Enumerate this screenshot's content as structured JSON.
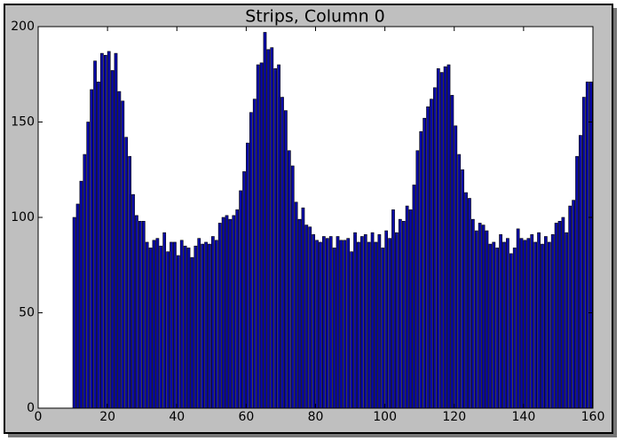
{
  "chart_data": {
    "type": "bar",
    "title": "Strips, Column 0",
    "x": [
      10,
      11,
      12,
      13,
      14,
      15,
      16,
      17,
      18,
      19,
      20,
      21,
      22,
      23,
      24,
      25,
      26,
      27,
      28,
      29,
      30,
      31,
      32,
      33,
      34,
      35,
      36,
      37,
      38,
      39,
      40,
      41,
      42,
      43,
      44,
      45,
      46,
      47,
      48,
      49,
      50,
      51,
      52,
      53,
      54,
      55,
      56,
      57,
      58,
      59,
      60,
      61,
      62,
      63,
      64,
      65,
      66,
      67,
      68,
      69,
      70,
      71,
      72,
      73,
      74,
      75,
      76,
      77,
      78,
      79,
      80,
      81,
      82,
      83,
      84,
      85,
      86,
      87,
      88,
      89,
      90,
      91,
      92,
      93,
      94,
      95,
      96,
      97,
      98,
      99,
      100,
      101,
      102,
      103,
      104,
      105,
      106,
      107,
      108,
      109,
      110,
      111,
      112,
      113,
      114,
      115,
      116,
      117,
      118,
      119,
      120,
      121,
      122,
      123,
      124,
      125,
      126,
      127,
      128,
      129,
      130,
      131,
      132,
      133,
      134,
      135,
      136,
      137,
      138,
      139,
      140,
      141,
      142,
      143,
      144,
      145,
      146,
      147,
      148,
      149,
      150,
      151,
      152,
      153,
      154,
      155,
      156,
      157,
      158,
      159
    ],
    "values": [
      100,
      107,
      119,
      133,
      150,
      167,
      182,
      171,
      186,
      185,
      187,
      177,
      186,
      166,
      161,
      142,
      132,
      112,
      101,
      98,
      98,
      87,
      84,
      88,
      89,
      85,
      92,
      82,
      87,
      87,
      80,
      88,
      85,
      84,
      79,
      85,
      89,
      86,
      87,
      86,
      90,
      88,
      97,
      100,
      101,
      99,
      101,
      104,
      114,
      124,
      139,
      155,
      162,
      180,
      181,
      197,
      188,
      189,
      178,
      180,
      163,
      156,
      135,
      127,
      108,
      99,
      105,
      96,
      95,
      91,
      88,
      87,
      90,
      89,
      90,
      84,
      90,
      88,
      88,
      89,
      82,
      92,
      87,
      90,
      91,
      87,
      92,
      87,
      91,
      84,
      93,
      89,
      104,
      92,
      99,
      98,
      106,
      104,
      117,
      135,
      145,
      152,
      158,
      162,
      168,
      178,
      176,
      179,
      180,
      164,
      148,
      133,
      125,
      113,
      110,
      99,
      93,
      97,
      96,
      93,
      86,
      87,
      84,
      91,
      87,
      89,
      81,
      84,
      94,
      89,
      88,
      89,
      91,
      87,
      92,
      86,
      90,
      87,
      91,
      97,
      98,
      100,
      92,
      106,
      109,
      132,
      143,
      163,
      171,
      171
    ],
    "color": "#0a0aa8",
    "bar_width": 0.8,
    "xlim": [
      0,
      160
    ],
    "xticks": [
      0,
      20,
      40,
      60,
      80,
      100,
      120,
      140,
      160
    ],
    "ylim": [
      0,
      200
    ],
    "yticks": [
      0,
      50,
      100,
      150,
      200
    ]
  }
}
